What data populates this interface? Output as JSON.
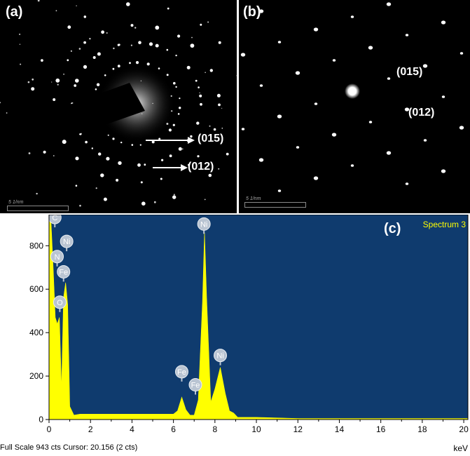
{
  "panel_a": {
    "label": "(a)",
    "annotation_1": "(015)",
    "annotation_2": "(012)",
    "scale_bar": "5 1/nm"
  },
  "panel_b": {
    "label": "(b)",
    "annotation_1": "(015)",
    "annotation_2": "(012)",
    "scale_bar": "5 1/nm"
  },
  "panel_c": {
    "label": "(c)",
    "spectrum_name": "Spectrum 3",
    "footer": "Full Scale 943 cts Cursor: 20.156  (2 cts)",
    "x_unit": "keV"
  },
  "colors": {
    "plot_background": "#0f3b6e",
    "spectrum_fill": "#ffff00",
    "peak_marker": "#b9c4d2"
  },
  "chart_data": {
    "type": "area",
    "title": "",
    "xlabel": "keV",
    "ylabel": "",
    "xlim": [
      0,
      20.2
    ],
    "ylim": [
      0,
      943
    ],
    "x_ticks": [
      "0",
      "2",
      "4",
      "6",
      "8",
      "10",
      "12",
      "14",
      "16",
      "18",
      "20"
    ],
    "y_ticks": [
      "0",
      "200",
      "400",
      "600",
      "800"
    ],
    "series": [
      {
        "name": "Spectrum 3",
        "x": [
          0,
          0.1,
          0.2,
          0.3,
          0.4,
          0.5,
          0.6,
          0.7,
          0.8,
          0.9,
          1.0,
          1.2,
          1.5,
          2,
          3,
          4,
          5,
          6,
          6.2,
          6.4,
          6.6,
          6.8,
          7.0,
          7.2,
          7.4,
          7.5,
          7.6,
          7.8,
          8.0,
          8.26,
          8.5,
          8.7,
          8.9,
          9.1,
          9.5,
          10,
          12,
          14,
          16,
          18,
          20,
          20.2
        ],
        "y": [
          943,
          900,
          700,
          470,
          440,
          470,
          140,
          560,
          630,
          530,
          60,
          20,
          25,
          25,
          25,
          25,
          25,
          25,
          40,
          103,
          45,
          20,
          20,
          90,
          540,
          860,
          560,
          80,
          140,
          240,
          120,
          40,
          30,
          10,
          10,
          10,
          5,
          5,
          5,
          5,
          5,
          5
        ]
      }
    ],
    "peak_labels": [
      {
        "element": "C",
        "energy": 0.28,
        "cts": 930
      },
      {
        "element": "Ni",
        "energy": 0.85,
        "cts": 820
      },
      {
        "element": "N",
        "energy": 0.39,
        "cts": 750
      },
      {
        "element": "Fe",
        "energy": 0.7,
        "cts": 680
      },
      {
        "element": "O",
        "energy": 0.52,
        "cts": 540
      },
      {
        "element": "Ni",
        "energy": 7.47,
        "cts": 900
      },
      {
        "element": "Fe",
        "energy": 6.4,
        "cts": 220
      },
      {
        "element": "Fe",
        "energy": 7.06,
        "cts": 160
      },
      {
        "element": "Ni",
        "energy": 8.26,
        "cts": 295
      }
    ]
  }
}
